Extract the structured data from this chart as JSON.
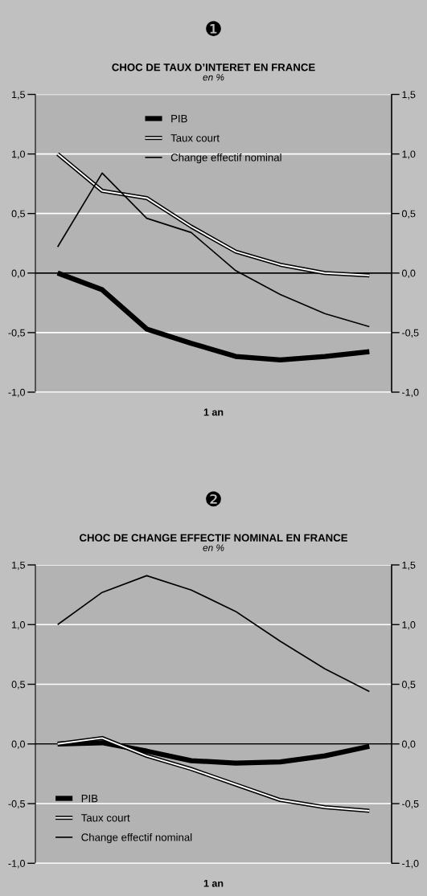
{
  "chart_data": [
    {
      "type": "line",
      "title": "CHOC DE TAUX D’INTERET EN FRANCE",
      "subtitle": "en %",
      "annotations": [
        "❶",
        "1 an"
      ],
      "categories": [
        null,
        null,
        null,
        null,
        null,
        null,
        null,
        null
      ],
      "series": [
        {
          "name": "PIB",
          "color": "#000000",
          "values": [
            0,
            -0.14,
            -0.47,
            -0.59,
            -0.7,
            -0.73,
            -0.7,
            -0.66
          ]
        },
        {
          "name": "Taux court",
          "color": "#000000",
          "values": [
            1.0,
            0.69,
            0.63,
            0.39,
            0.18,
            0.07,
            0.0,
            -0.02
          ]
        },
        {
          "name": "Change effectif nominal",
          "color": "#000000",
          "values": [
            0.22,
            0.84,
            0.46,
            0.34,
            0.02,
            -0.18,
            -0.34,
            -0.45
          ]
        }
      ],
      "ylim": [
        -1.0,
        1.5
      ],
      "yticks": [
        {
          "value": -1.0,
          "label": "-1,0"
        },
        {
          "value": -0.5,
          "label": "-0,5"
        },
        {
          "value": 0,
          "label": "0,0"
        },
        {
          "value": 0.5,
          "label": "0,5"
        },
        {
          "value": 1.0,
          "label": "1,0"
        },
        {
          "value": 1.5,
          "label": "1,5"
        }
      ],
      "y2lim": [
        -1.0,
        1.5
      ],
      "y2ticks": [
        {
          "value": -1.0,
          "label": "-1,0"
        },
        {
          "value": -0.5,
          "label": "-0,5"
        },
        {
          "value": 0,
          "label": "0,0"
        },
        {
          "value": 0.5,
          "label": "0,5"
        },
        {
          "value": 1.0,
          "label": "1,0"
        },
        {
          "value": 1.5,
          "label": "1,5"
        }
      ],
      "ref_lines": [
        {
          "axis": "y",
          "value": 0,
          "color": "#000000"
        }
      ],
      "grid": "y",
      "legend": "top",
      "marker": "none"
    },
    {
      "type": "line",
      "title": "CHOC DE CHANGE EFFECTIF NOMINAL EN FRANCE",
      "subtitle": "en %",
      "annotations": [
        "❷",
        "1 an"
      ],
      "categories": [
        null,
        null,
        null,
        null,
        null,
        null,
        null,
        null
      ],
      "series": [
        {
          "name": "PIB",
          "color": "#000000",
          "values": [
            0.0,
            0.01,
            -0.06,
            -0.14,
            -0.16,
            -0.15,
            -0.1,
            -0.02
          ]
        },
        {
          "name": "Taux court",
          "color": "#000000",
          "values": [
            0.0,
            0.05,
            -0.1,
            -0.21,
            -0.34,
            -0.47,
            -0.53,
            -0.56
          ]
        },
        {
          "name": "Change effectif nominal",
          "color": "#000000",
          "values": [
            1.0,
            1.27,
            1.41,
            1.29,
            1.11,
            0.86,
            0.63,
            0.44
          ]
        }
      ],
      "ylim": [
        -1.0,
        1.5
      ],
      "yticks": [
        {
          "value": -1.0,
          "label": "-1,0"
        },
        {
          "value": -0.5,
          "label": "-0,5"
        },
        {
          "value": 0,
          "label": "0,0"
        },
        {
          "value": 0.5,
          "label": "0,5"
        },
        {
          "value": 1.0,
          "label": "1,0"
        },
        {
          "value": 1.5,
          "label": "1,5"
        }
      ],
      "y2lim": [
        -1.0,
        1.5
      ],
      "y2ticks": [
        {
          "value": -1.0,
          "label": "-1,0"
        },
        {
          "value": -0.5,
          "label": "-0,5"
        },
        {
          "value": 0,
          "label": "0,0"
        },
        {
          "value": 0.5,
          "label": "0,5"
        },
        {
          "value": 1.0,
          "label": "1,0"
        },
        {
          "value": 1.5,
          "label": "1,5"
        }
      ],
      "ref_lines": [
        {
          "axis": "y",
          "value": 0,
          "color": "#000000"
        }
      ],
      "grid": "y",
      "legend": "bottom left",
      "marker": "none"
    }
  ]
}
